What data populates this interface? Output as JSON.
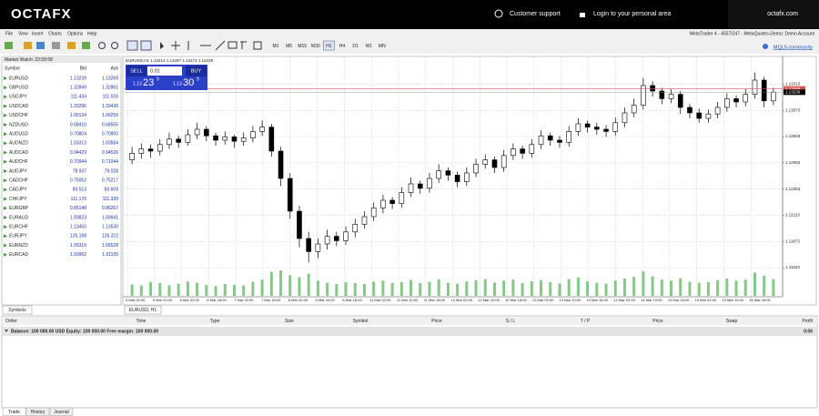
{
  "header": {
    "logo": "OCTAFX",
    "support": "Customer support",
    "login": "Login to your personal area",
    "site": "octafx.com"
  },
  "menu": [
    "File",
    "View",
    "Insert",
    "Charts",
    "Options",
    "Help"
  ],
  "window_title": "MetaTrader 4 - 4557I247 - MetaQuotes-Demo: Demo Account",
  "toolbar": {
    "timeframes": [
      "M1",
      "M5",
      "M15",
      "M30",
      "H1",
      "H4",
      "D1",
      "W1",
      "MN"
    ],
    "community": "MQL5.community"
  },
  "market_watch": {
    "title": "Market Watch: 22:59:58",
    "columns": [
      "Symbol",
      "Bid",
      "Ask"
    ],
    "rows": [
      [
        "EURUSD",
        "1.13239",
        "1.13269"
      ],
      [
        "GBPUSD",
        "1.32849",
        "1.32861"
      ],
      [
        "USDJPY",
        "111.434",
        "111.516"
      ],
      [
        "USDCAD",
        "1.33296",
        "1.33436"
      ],
      [
        "USDCHF",
        "1.00134",
        "1.00259"
      ],
      [
        "NZDUSD",
        "0.68410",
        "0.68505"
      ],
      [
        "AUDUSD",
        "0.70804",
        "0.70900"
      ],
      [
        "AUDNZD",
        "1.03313",
        "1.03584"
      ],
      [
        "AUDCAD",
        "0.94429",
        "0.94526"
      ],
      [
        "AUDCHF",
        "0.70944",
        "0.71044"
      ],
      [
        "AUDJPY",
        "78.937",
        "79.028"
      ],
      [
        "CADCHF",
        "0.75052",
        "0.75217"
      ],
      [
        "CADJPY",
        "83.513",
        "83.609"
      ],
      [
        "CHFJPY",
        "111.170",
        "111.339"
      ],
      [
        "EURGBP",
        "0.85148",
        "0.85267"
      ],
      [
        "EURAUD",
        "1.59823",
        "1.59941"
      ],
      [
        "EURCHF",
        "1.13450",
        "1.13530"
      ],
      [
        "EURJPY",
        "126.168",
        "126.322"
      ],
      [
        "EURNZD",
        "1.65319",
        "1.65528"
      ],
      [
        "EURCAD",
        "1.50962",
        "1.51105"
      ]
    ],
    "tab": "Symbols"
  },
  "chart_data": {
    "type": "candlestick",
    "info": "EURUSD,H1  1.13214 1.13287 1.13173 1.13239",
    "tab": "EURUSD, H1",
    "one_click": {
      "sell": "SELL",
      "buy": "BUY",
      "lot": "0.01",
      "sell_price": [
        "1.13",
        "23",
        "9"
      ],
      "buy_price": [
        "1.13",
        "30",
        "9"
      ]
    },
    "candles": [
      [
        1.1262,
        1.1274,
        1.1258,
        1.1268
      ],
      [
        1.1268,
        1.1277,
        1.1263,
        1.1272
      ],
      [
        1.1272,
        1.1276,
        1.1264,
        1.127
      ],
      [
        1.127,
        1.1281,
        1.1266,
        1.1276
      ],
      [
        1.1276,
        1.1287,
        1.1272,
        1.1281
      ],
      [
        1.1281,
        1.1284,
        1.1273,
        1.1278
      ],
      [
        1.1278,
        1.129,
        1.1275,
        1.1285
      ],
      [
        1.1285,
        1.1296,
        1.1281,
        1.129
      ],
      [
        1.129,
        1.1293,
        1.1279,
        1.1284
      ],
      [
        1.1284,
        1.1287,
        1.1275,
        1.128
      ],
      [
        1.128,
        1.1288,
        1.1276,
        1.1283
      ],
      [
        1.1283,
        1.1285,
        1.1273,
        1.1279
      ],
      [
        1.1279,
        1.1287,
        1.1275,
        1.1282
      ],
      [
        1.1282,
        1.1293,
        1.1278,
        1.1288
      ],
      [
        1.1288,
        1.1298,
        1.1284,
        1.1292
      ],
      [
        1.1292,
        1.1295,
        1.1265,
        1.127
      ],
      [
        1.127,
        1.1274,
        1.1238,
        1.1245
      ],
      [
        1.1245,
        1.125,
        1.1208,
        1.1215
      ],
      [
        1.1215,
        1.122,
        1.1182,
        1.119
      ],
      [
        1.119,
        1.1196,
        1.1168,
        1.1178
      ],
      [
        1.1178,
        1.119,
        1.1172,
        1.1185
      ],
      [
        1.1185,
        1.1198,
        1.118,
        1.1192
      ],
      [
        1.1192,
        1.1196,
        1.1183,
        1.1188
      ],
      [
        1.1188,
        1.1201,
        1.1184,
        1.1196
      ],
      [
        1.1196,
        1.1208,
        1.1191,
        1.1203
      ],
      [
        1.1203,
        1.1215,
        1.1199,
        1.121
      ],
      [
        1.121,
        1.1223,
        1.1206,
        1.1218
      ],
      [
        1.1218,
        1.123,
        1.1213,
        1.1225
      ],
      [
        1.1225,
        1.1228,
        1.1217,
        1.1222
      ],
      [
        1.1222,
        1.1237,
        1.1218,
        1.1232
      ],
      [
        1.1232,
        1.1246,
        1.1228,
        1.124
      ],
      [
        1.124,
        1.1243,
        1.1231,
        1.1236
      ],
      [
        1.1236,
        1.125,
        1.1232,
        1.1245
      ],
      [
        1.1245,
        1.1258,
        1.1241,
        1.1252
      ],
      [
        1.1252,
        1.1255,
        1.1243,
        1.1248
      ],
      [
        1.1248,
        1.1251,
        1.1237,
        1.1242
      ],
      [
        1.1242,
        1.1255,
        1.1238,
        1.125
      ],
      [
        1.125,
        1.1263,
        1.1246,
        1.1258
      ],
      [
        1.1258,
        1.1267,
        1.1254,
        1.1262
      ],
      [
        1.1262,
        1.1265,
        1.125,
        1.1255
      ],
      [
        1.1255,
        1.1271,
        1.1251,
        1.1266
      ],
      [
        1.1266,
        1.1277,
        1.1262,
        1.1272
      ],
      [
        1.1272,
        1.1275,
        1.1263,
        1.1268
      ],
      [
        1.1268,
        1.1281,
        1.1264,
        1.1276
      ],
      [
        1.1276,
        1.1289,
        1.1272,
        1.1284
      ],
      [
        1.1284,
        1.1287,
        1.1275,
        1.128
      ],
      [
        1.128,
        1.1284,
        1.1273,
        1.1278
      ],
      [
        1.1278,
        1.1293,
        1.1274,
        1.1288
      ],
      [
        1.1288,
        1.13,
        1.1284,
        1.1295
      ],
      [
        1.1295,
        1.1298,
        1.1287,
        1.1292
      ],
      [
        1.1292,
        1.1296,
        1.1285,
        1.129
      ],
      [
        1.129,
        1.1294,
        1.1283,
        1.1288
      ],
      [
        1.1288,
        1.1301,
        1.1284,
        1.1296
      ],
      [
        1.1296,
        1.131,
        1.1292,
        1.1305
      ],
      [
        1.1305,
        1.1318,
        1.1301,
        1.1312
      ],
      [
        1.1312,
        1.1337,
        1.1308,
        1.133
      ],
      [
        1.133,
        1.1334,
        1.132,
        1.1325
      ],
      [
        1.1325,
        1.1328,
        1.1313,
        1.1318
      ],
      [
        1.1318,
        1.1327,
        1.1314,
        1.1322
      ],
      [
        1.1322,
        1.1325,
        1.1304,
        1.131
      ],
      [
        1.131,
        1.1313,
        1.13,
        1.1305
      ],
      [
        1.1305,
        1.1309,
        1.1296,
        1.13
      ],
      [
        1.13,
        1.1308,
        1.1296,
        1.1304
      ],
      [
        1.1304,
        1.1315,
        1.13,
        1.131
      ],
      [
        1.131,
        1.1323,
        1.1306,
        1.1318
      ],
      [
        1.1318,
        1.1321,
        1.131,
        1.1315
      ],
      [
        1.1315,
        1.1327,
        1.1311,
        1.1322
      ],
      [
        1.1322,
        1.1342,
        1.1318,
        1.1335
      ],
      [
        1.1335,
        1.1338,
        1.131,
        1.1316
      ],
      [
        1.1316,
        1.1328,
        1.1312,
        1.1324
      ]
    ],
    "volumes": [
      420,
      380,
      510,
      470,
      390,
      450,
      530,
      480,
      400,
      360,
      440,
      410,
      380,
      520,
      600,
      880,
      940,
      760,
      690,
      820,
      560,
      480,
      430,
      500,
      470,
      440,
      520,
      560,
      480,
      510,
      590,
      470,
      520,
      610,
      480,
      450,
      530,
      580,
      620,
      490,
      560,
      600,
      470,
      540,
      580,
      500,
      460,
      620,
      680,
      540,
      480,
      450,
      560,
      640,
      700,
      900,
      720,
      600,
      560,
      650,
      520,
      480,
      500,
      580,
      640,
      560,
      600,
      860,
      740,
      620
    ],
    "ylim": [
      1.116,
      1.135
    ],
    "yticks": [
      1.11633,
      1.11873,
      1.12113,
      1.12353,
      1.12593,
      1.12833,
      1.13073,
      1.13313
    ],
    "bid": 1.13239,
    "ask": 1.13269,
    "x_labels": [
      "5 Mar 02:00",
      "5 Mar 10:00",
      "6 Mar 02:00",
      "6 Mar 18:00",
      "7 Mar 02:00",
      "7 Mar 18:00",
      "8 Mar 02:00",
      "8 Mar 10:00",
      "8 Mar 18:00",
      "11 Mar 02:00",
      "11 Mar 10:00",
      "11 Mar 18:00",
      "12 Mar 02:00",
      "12 Mar 10:00",
      "12 Mar 18:00",
      "13 Mar 02:00",
      "13 Mar 10:00",
      "13 Mar 18:00",
      "14 Mar 02:00",
      "14 Mar 10:00",
      "14 Mar 18:00",
      "15 Mar 02:00",
      "15 Mar 10:00",
      "15 Mar 18:00"
    ],
    "grid": true,
    "up_color": "#ffffff",
    "down_color": "#000000",
    "volume_color": "#86c986",
    "ask_color": "#d9534f"
  },
  "terminal": {
    "columns": [
      "Order",
      "Time",
      "Type",
      "Size",
      "Symbol",
      "Price",
      "S / L",
      "T / P",
      "Price",
      "Swap",
      "Profit"
    ],
    "balance": "Balance: 100 000.00 USD  Equity: 100 000.00  Free margin: 100 000.00",
    "profit": "0.00",
    "tabs": [
      "Trade",
      "History",
      "Journal"
    ]
  }
}
